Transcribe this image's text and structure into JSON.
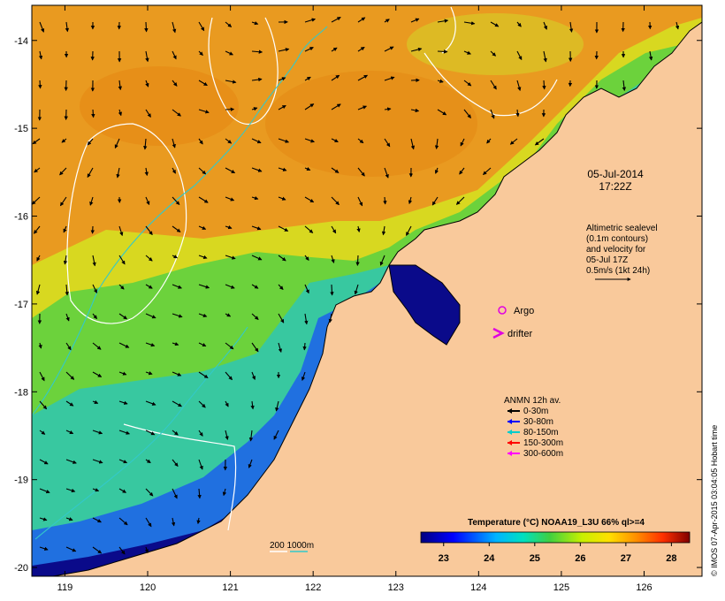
{
  "map": {
    "date": "05-Jul-2014",
    "time": "17:22Z",
    "x_ticks": [
      "119",
      "120",
      "121",
      "122",
      "123",
      "124",
      "125",
      "126"
    ],
    "y_ticks": [
      "-14",
      "-15",
      "-16",
      "-17",
      "-18",
      "-19",
      "-20"
    ],
    "lon_range": [
      118.6,
      126.7
    ],
    "lat_range": [
      -20.1,
      -13.6
    ],
    "altimetry_note": [
      "Altimetric sealevel",
      "(0.1m contours)",
      "and velocity for",
      "05-Jul 17Z",
      "0.5m/s (1kt 24h)"
    ],
    "argo_label": "Argo",
    "drifter_label": "drifter",
    "anmn": {
      "title": "ANMN 12h av.",
      "items": [
        {
          "label": "0-30m",
          "color": "#000000"
        },
        {
          "label": "30-80m",
          "color": "#0000ff"
        },
        {
          "label": "80-150m",
          "color": "#00cccc"
        },
        {
          "label": "150-300m",
          "color": "#ff0000"
        },
        {
          "label": "300-600m",
          "color": "#ff00ff"
        }
      ]
    },
    "bathymetry_legend": "200  1000m",
    "colorbar": {
      "title": "Temperature (°C) NOAA19_L3U 66% ql>=4",
      "ticks": [
        "23",
        "24",
        "25",
        "26",
        "27",
        "28"
      ],
      "min": 22.5,
      "max": 28.4
    },
    "credit": "© IMOS 07-Apr-2015 03:04:05 Hobart time",
    "colors": {
      "land": "#f9c99b",
      "warm": "#e8951a",
      "cold": "#000080",
      "contour_sealevel": "#ffffff",
      "contour_200m": "#33c9c9"
    }
  }
}
